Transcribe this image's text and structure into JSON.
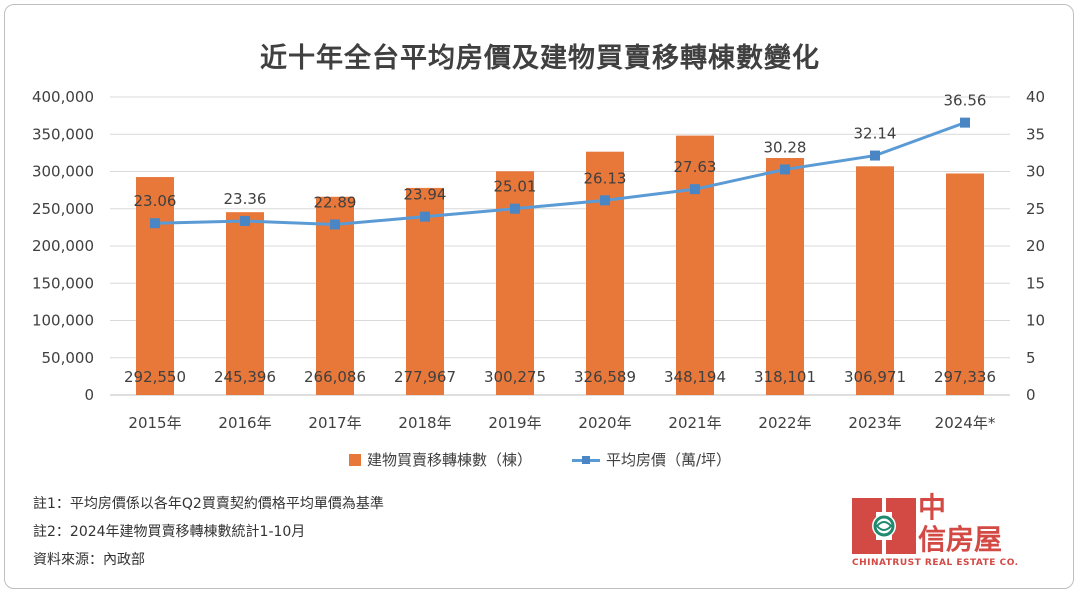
{
  "chart_data": {
    "type": "bar+line",
    "title": "近十年全台平均房價及建物買賣移轉棟數變化",
    "categories": [
      "2015年",
      "2016年",
      "2017年",
      "2018年",
      "2019年",
      "2020年",
      "2021年",
      "2022年",
      "2023年",
      "2024年*"
    ],
    "series": [
      {
        "name": "建物買賣移轉棟數（棟）",
        "type": "bar",
        "axis": "left",
        "values": [
          292550,
          245396,
          266086,
          277967,
          300275,
          326589,
          348194,
          318101,
          306971,
          297336
        ],
        "labels": [
          "292,550",
          "245,396",
          "266,086",
          "277,967",
          "300,275",
          "326,589",
          "348,194",
          "318,101",
          "306,971",
          "297,336"
        ],
        "color": "#e8773a"
      },
      {
        "name": "平均房價（萬/坪）",
        "type": "line",
        "axis": "right",
        "values": [
          23.06,
          23.36,
          22.89,
          23.94,
          25.01,
          26.13,
          27.63,
          30.28,
          32.14,
          36.56
        ],
        "labels": [
          "23.06",
          "23.36",
          "22.89",
          "23.94",
          "25.01",
          "26.13",
          "27.63",
          "30.28",
          "32.14",
          "36.56"
        ],
        "color": "#5b9bd5"
      }
    ],
    "left_axis": {
      "range": [
        0,
        400000
      ],
      "ticks": [
        0,
        50000,
        100000,
        150000,
        200000,
        250000,
        300000,
        350000,
        400000
      ],
      "tick_labels": [
        "0",
        "50,000",
        "100,000",
        "150,000",
        "200,000",
        "250,000",
        "300,000",
        "350,000",
        "400,000"
      ]
    },
    "right_axis": {
      "range": [
        0,
        40
      ],
      "ticks": [
        0,
        5,
        10,
        15,
        20,
        25,
        30,
        35,
        40
      ],
      "tick_labels": [
        "0",
        "5",
        "10",
        "15",
        "20",
        "25",
        "30",
        "35",
        "40"
      ]
    },
    "grid": true,
    "legend_position": "bottom"
  },
  "legend": {
    "bar_label": "建物買賣移轉棟數（棟）",
    "line_label": "平均房價（萬/坪）"
  },
  "notes": {
    "note1": "註1：平均房價係以各年Q2買賣契約價格平均單價為基準",
    "note2": "註2：2024年建物買賣移轉棟數統計1-10月",
    "source": "資料來源：內政部"
  },
  "logo": {
    "line1": "中",
    "line2": "信房屋",
    "english": "CHINATRUST REAL ESTATE CO."
  }
}
